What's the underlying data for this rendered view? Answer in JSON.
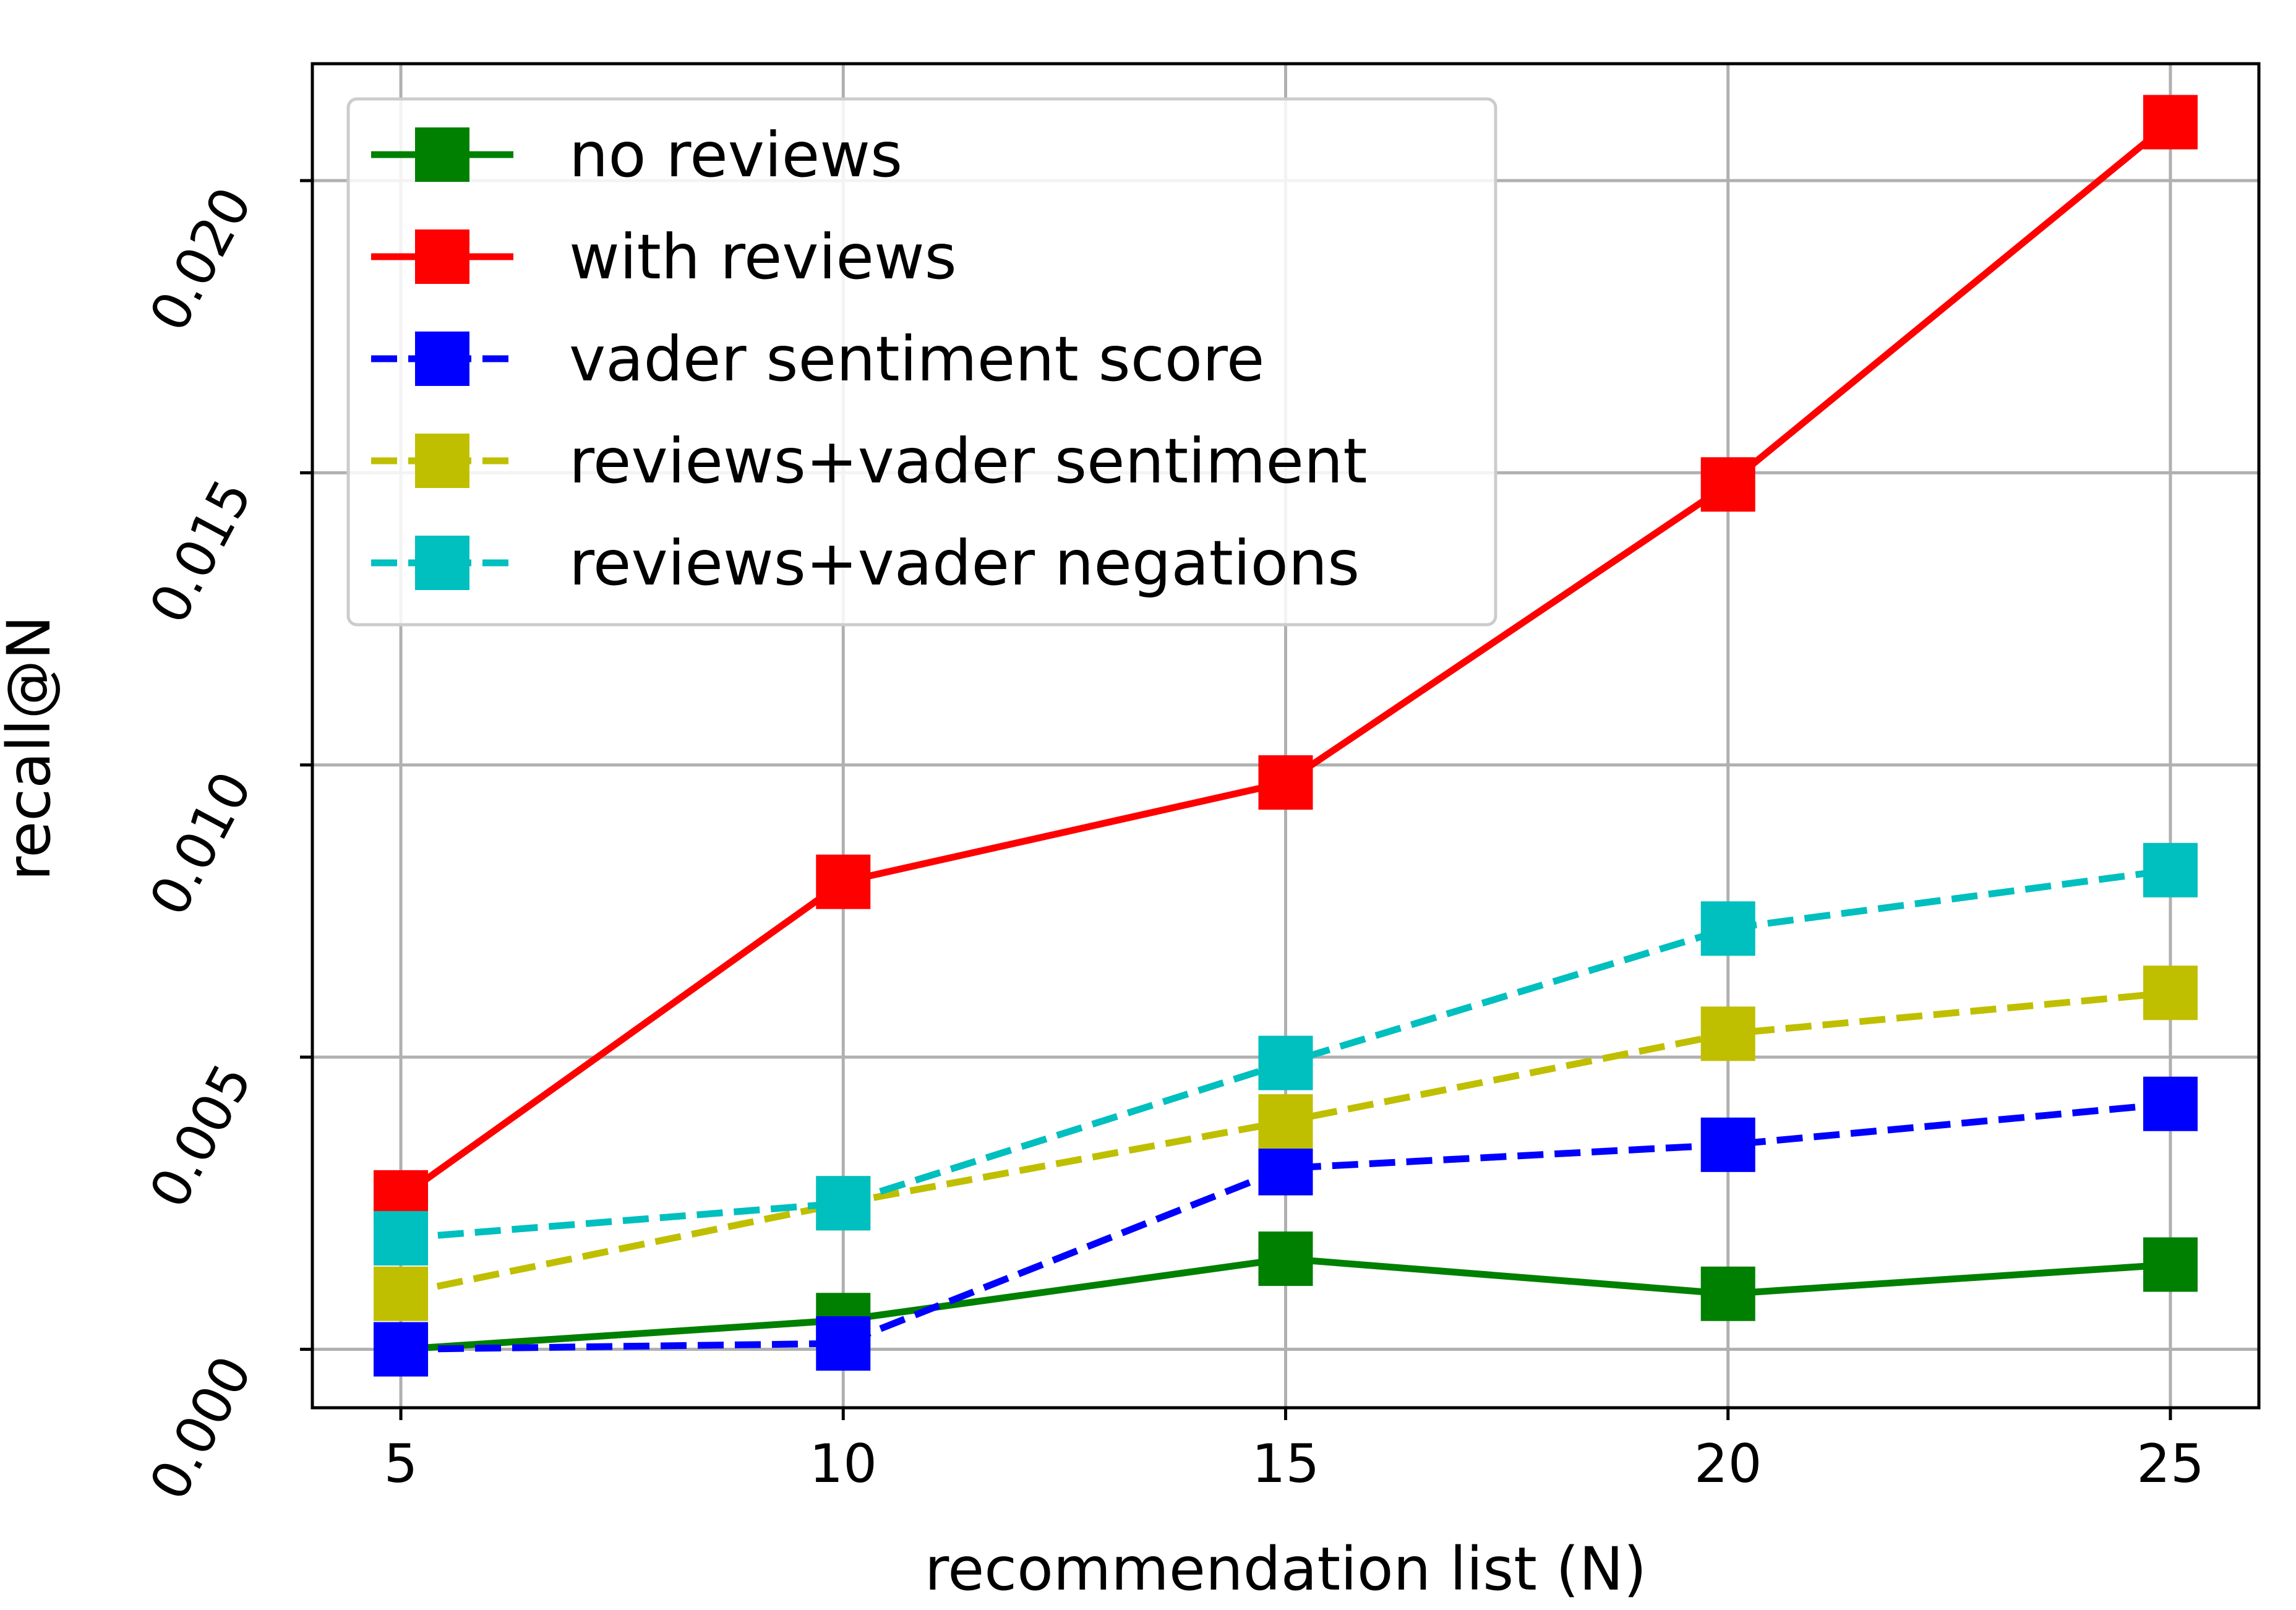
{
  "chart_data": {
    "type": "line",
    "title": "",
    "xlabel": "recommendation list (N)",
    "ylabel": "recall@N",
    "x": [
      5,
      10,
      15,
      20,
      25
    ],
    "xlim": [
      4,
      26
    ],
    "ylim": [
      -0.001,
      0.022
    ],
    "x_ticks": [
      "5",
      "10",
      "15",
      "20",
      "25"
    ],
    "y_ticks": [
      "0.000",
      "0.005",
      "0.010",
      "0.015",
      "0.020"
    ],
    "y_tick_values": [
      0.0,
      0.005,
      0.01,
      0.015,
      0.02
    ],
    "grid": true,
    "legend_position": "upper-left",
    "series": [
      {
        "name": "no reviews",
        "color": "#008000",
        "linestyle": "solid",
        "marker": "square",
        "values": [
          0.0,
          0.0005,
          0.00155,
          0.00095,
          0.00145
        ]
      },
      {
        "name": "with reviews",
        "color": "#ff0000",
        "linestyle": "solid",
        "marker": "square",
        "values": [
          0.0026,
          0.008,
          0.0097,
          0.0148,
          0.021
        ]
      },
      {
        "name": "vader sentiment score",
        "color": "#0000ff",
        "linestyle": "dashed",
        "marker": "square",
        "values": [
          0.0,
          0.0001,
          0.0031,
          0.0035,
          0.0042
        ]
      },
      {
        "name": "reviews+vader sentiment",
        "color": "#bfbf00",
        "linestyle": "dashed",
        "marker": "square",
        "values": [
          0.00095,
          0.0025,
          0.0039,
          0.0054,
          0.0061
        ]
      },
      {
        "name": "reviews+vader negations",
        "color": "#00bfbf",
        "linestyle": "dashed",
        "marker": "square",
        "values": [
          0.0019,
          0.0025,
          0.0049,
          0.0072,
          0.0082
        ]
      }
    ]
  }
}
